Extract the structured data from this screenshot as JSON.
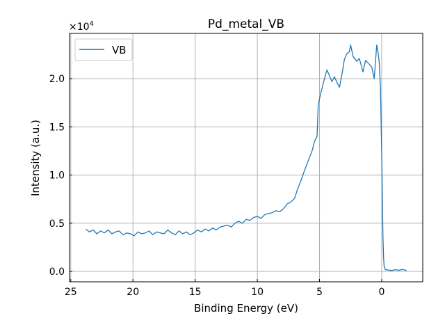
{
  "chart_data": {
    "type": "line",
    "title": "Pd_metal_VB",
    "xlabel": "Binding Energy (eV)",
    "ylabel": "Intensity (a.u.)",
    "y_scale_label": "×10",
    "y_scale_exponent": "4",
    "xlim": [
      25.1,
      -3.3
    ],
    "ylim": [
      -1080,
      24700
    ],
    "x_inverted": true,
    "grid": true,
    "legend_position": "top-left",
    "x_ticks": [
      25,
      20,
      15,
      10,
      5,
      0
    ],
    "x_tick_labels": [
      "25",
      "20",
      "15",
      "10",
      "5",
      "0"
    ],
    "y_ticks": [
      0,
      5000,
      10000,
      15000,
      20000
    ],
    "y_tick_labels": [
      "0.0",
      "0.5",
      "1.0",
      "1.5",
      "2.0"
    ],
    "series": [
      {
        "name": "VB",
        "color": "#1f77b4",
        "x": [
          23.8,
          23.5,
          23.2,
          22.9,
          22.6,
          22.3,
          22.0,
          21.7,
          21.4,
          21.1,
          20.8,
          20.5,
          20.2,
          19.9,
          19.6,
          19.3,
          19.0,
          18.7,
          18.4,
          18.1,
          17.8,
          17.5,
          17.2,
          16.9,
          16.6,
          16.3,
          16.0,
          15.7,
          15.4,
          15.1,
          14.8,
          14.5,
          14.2,
          13.9,
          13.6,
          13.3,
          13.0,
          12.7,
          12.4,
          12.1,
          11.8,
          11.5,
          11.2,
          10.9,
          10.6,
          10.3,
          10.0,
          9.7,
          9.4,
          9.1,
          8.8,
          8.5,
          8.2,
          7.9,
          7.6,
          7.3,
          7.0,
          6.8,
          6.5,
          6.2,
          5.9,
          5.6,
          5.4,
          5.2,
          5.1,
          4.9,
          4.7,
          4.5,
          4.4,
          4.2,
          4.0,
          3.8,
          3.6,
          3.4,
          3.2,
          3.0,
          2.8,
          2.6,
          2.5,
          2.3,
          2.0,
          1.8,
          1.5,
          1.3,
          1.0,
          0.8,
          0.6,
          0.4,
          0.3,
          0.2,
          0.1,
          0.0,
          -0.05,
          -0.1,
          -0.15,
          -0.2,
          -0.3,
          -0.5,
          -0.8,
          -1.1,
          -1.4,
          -1.7,
          -2.0
        ],
        "y": [
          4400,
          4100,
          4300,
          3900,
          4200,
          4000,
          4300,
          3900,
          4100,
          4200,
          3800,
          4000,
          3900,
          3700,
          4100,
          3900,
          4000,
          4200,
          3800,
          4100,
          4000,
          3900,
          4300,
          4000,
          3800,
          4200,
          3900,
          4100,
          3800,
          4000,
          4300,
          4100,
          4400,
          4200,
          4500,
          4300,
          4600,
          4700,
          4800,
          4600,
          5000,
          5200,
          5000,
          5400,
          5300,
          5600,
          5700,
          5500,
          5900,
          6000,
          6100,
          6300,
          6200,
          6500,
          7000,
          7200,
          7600,
          8400,
          9400,
          10500,
          11500,
          12500,
          13500,
          14000,
          17300,
          18500,
          19500,
          20500,
          20900,
          20300,
          19700,
          20200,
          19600,
          19100,
          20400,
          22000,
          22600,
          22800,
          23500,
          22300,
          21800,
          22100,
          20700,
          21900,
          21500,
          21200,
          20000,
          23500,
          22800,
          21700,
          19000,
          12000,
          8000,
          3500,
          1400,
          500,
          200,
          150,
          100,
          180,
          120,
          200,
          100
        ]
      }
    ]
  }
}
